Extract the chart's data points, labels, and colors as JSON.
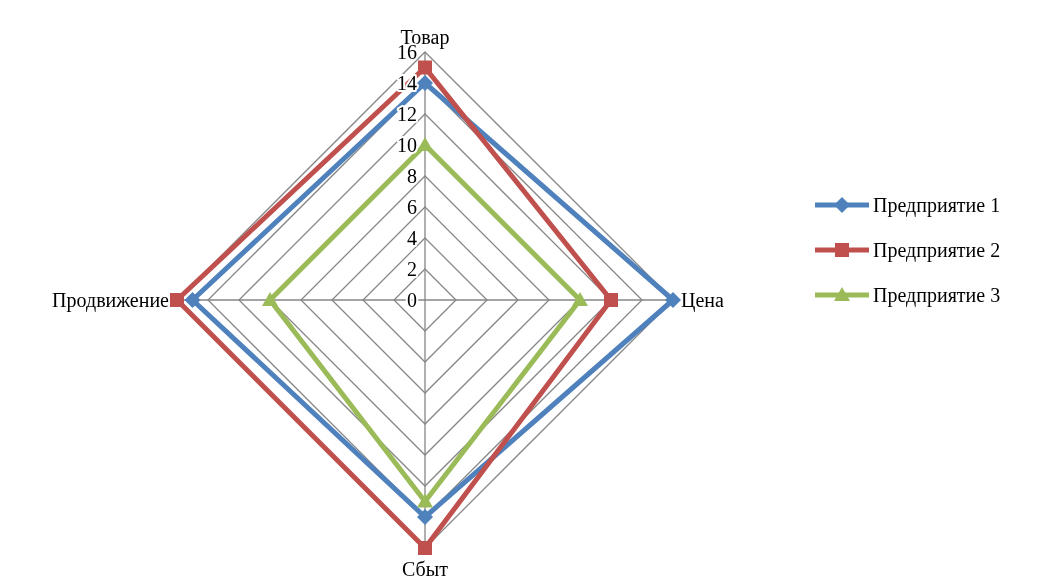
{
  "chart_data": {
    "type": "radar",
    "categories": [
      "Товар",
      "Цена",
      "Сбыт",
      "Продвижение"
    ],
    "ylim": [
      0,
      16
    ],
    "yticks": [
      0,
      2,
      4,
      6,
      8,
      10,
      12,
      14,
      16
    ],
    "legend": "right",
    "grid": true,
    "series": [
      {
        "name": "Предприятие 1",
        "color": "#4f81bd",
        "marker": "diamond",
        "values": [
          14,
          16,
          14,
          15
        ]
      },
      {
        "name": "Предприятие 2",
        "color": "#c0504d",
        "marker": "square",
        "values": [
          15,
          12,
          16,
          16
        ]
      },
      {
        "name": "Предприятие 3",
        "color": "#9bbb59",
        "marker": "triangle",
        "values": [
          10,
          10,
          13,
          10
        ]
      }
    ]
  }
}
